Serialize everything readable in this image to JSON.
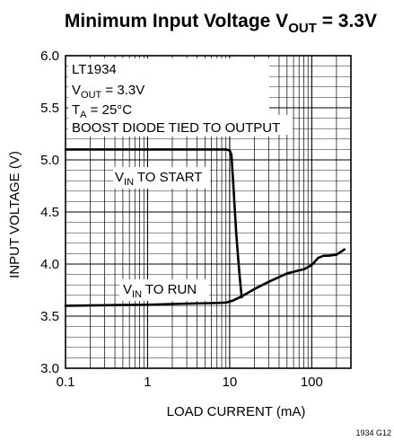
{
  "chart_data": {
    "type": "line",
    "title": "Minimum Input Voltage V",
    "title_sub": "OUT",
    "title_tail": " = 3.3V",
    "xlabel": "LOAD CURRENT (mA)",
    "ylabel": "INPUT VOLTAGE (V)",
    "xscale": "log",
    "xlim": [
      0.1,
      300
    ],
    "ylim": [
      3.0,
      6.0
    ],
    "x_ticks": [
      {
        "value": 0.1,
        "label": "0.1"
      },
      {
        "value": 1,
        "label": "1"
      },
      {
        "value": 10,
        "label": "10"
      },
      {
        "value": 100,
        "label": "100"
      }
    ],
    "y_ticks": [
      {
        "value": 3.0,
        "label": "3.0"
      },
      {
        "value": 3.5,
        "label": "3.5"
      },
      {
        "value": 4.0,
        "label": "4.0"
      },
      {
        "value": 4.5,
        "label": "4.5"
      },
      {
        "value": 5.0,
        "label": "5.0"
      },
      {
        "value": 5.5,
        "label": "5.5"
      },
      {
        "value": 6.0,
        "label": "6.0"
      }
    ],
    "grid": true,
    "annotation_lines": [
      {
        "main": "LT1934",
        "sub": "",
        "tail": ""
      },
      {
        "main": "V",
        "sub": "OUT",
        "tail": " = 3.3V"
      },
      {
        "main": "T",
        "sub": "A",
        "tail": " = 25°C"
      },
      {
        "main": "BOOST DIODE TIED TO OUTPUT",
        "sub": "",
        "tail": ""
      }
    ],
    "series": [
      {
        "label_main": "V",
        "label_sub": "IN",
        "label_tail": " TO START",
        "x": [
          0.1,
          1,
          5,
          9,
          10,
          10.5,
          11,
          12,
          13,
          14
        ],
        "y": [
          5.1,
          5.1,
          5.1,
          5.1,
          5.09,
          5.05,
          4.8,
          4.3,
          3.95,
          3.68
        ]
      },
      {
        "label_main": "V",
        "label_sub": "IN",
        "label_tail": " TO RUN",
        "x": [
          0.1,
          1,
          3,
          6,
          9,
          11,
          14,
          20,
          30,
          50,
          80,
          100,
          120,
          140,
          160,
          200,
          250
        ],
        "y": [
          3.6,
          3.61,
          3.62,
          3.625,
          3.63,
          3.65,
          3.69,
          3.76,
          3.83,
          3.91,
          3.95,
          3.99,
          4.06,
          4.08,
          4.08,
          4.09,
          4.14
        ]
      }
    ],
    "footnote": "1934 G12"
  }
}
